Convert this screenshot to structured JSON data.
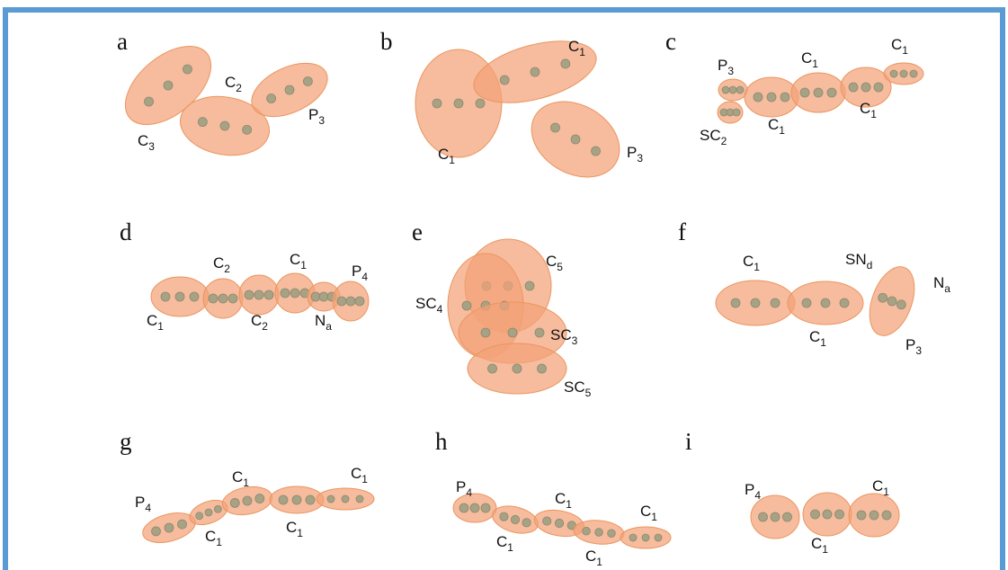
{
  "panels": [
    {
      "letter": "a",
      "beads": [
        {
          "name": "C",
          "sub": "2"
        },
        {
          "name": "P",
          "sub": "3"
        },
        {
          "name": "C",
          "sub": "3"
        }
      ]
    },
    {
      "letter": "b",
      "beads": [
        {
          "name": "C",
          "sub": "1"
        },
        {
          "name": "C",
          "sub": "1"
        },
        {
          "name": "P",
          "sub": "3"
        }
      ]
    },
    {
      "letter": "c",
      "beads": [
        {
          "name": "P",
          "sub": "3"
        },
        {
          "name": "C",
          "sub": "1"
        },
        {
          "name": "C",
          "sub": "1"
        },
        {
          "name": "C",
          "sub": "1"
        },
        {
          "name": "C",
          "sub": "1"
        },
        {
          "name": "SC",
          "sub": "2"
        }
      ]
    },
    {
      "letter": "d",
      "beads": [
        {
          "name": "C",
          "sub": "2"
        },
        {
          "name": "C",
          "sub": "1"
        },
        {
          "name": "P",
          "sub": "4"
        },
        {
          "name": "C",
          "sub": "1"
        },
        {
          "name": "C",
          "sub": "2"
        },
        {
          "name": "N",
          "sub": "a"
        }
      ]
    },
    {
      "letter": "e",
      "beads": [
        {
          "name": "C",
          "sub": "5"
        },
        {
          "name": "SC",
          "sub": "4"
        },
        {
          "name": "SC",
          "sub": "3"
        },
        {
          "name": "SC",
          "sub": "5"
        }
      ]
    },
    {
      "letter": "f",
      "beads": [
        {
          "name": "C",
          "sub": "1"
        },
        {
          "name": "SN",
          "sub": "d"
        },
        {
          "name": "N",
          "sub": "a"
        },
        {
          "name": "C",
          "sub": "1"
        },
        {
          "name": "P",
          "sub": "3"
        }
      ]
    },
    {
      "letter": "g",
      "beads": [
        {
          "name": "P",
          "sub": "4"
        },
        {
          "name": "C",
          "sub": "1"
        },
        {
          "name": "C",
          "sub": "1"
        },
        {
          "name": "C",
          "sub": "1"
        },
        {
          "name": "C",
          "sub": "1"
        }
      ]
    },
    {
      "letter": "h",
      "beads": [
        {
          "name": "P",
          "sub": "4"
        },
        {
          "name": "C",
          "sub": "1"
        },
        {
          "name": "C",
          "sub": "1"
        },
        {
          "name": "C",
          "sub": "1"
        },
        {
          "name": "C",
          "sub": "1"
        }
      ]
    },
    {
      "letter": "i",
      "beads": [
        {
          "name": "P",
          "sub": "4"
        },
        {
          "name": "C",
          "sub": "1"
        },
        {
          "name": "C",
          "sub": "1"
        }
      ]
    }
  ]
}
